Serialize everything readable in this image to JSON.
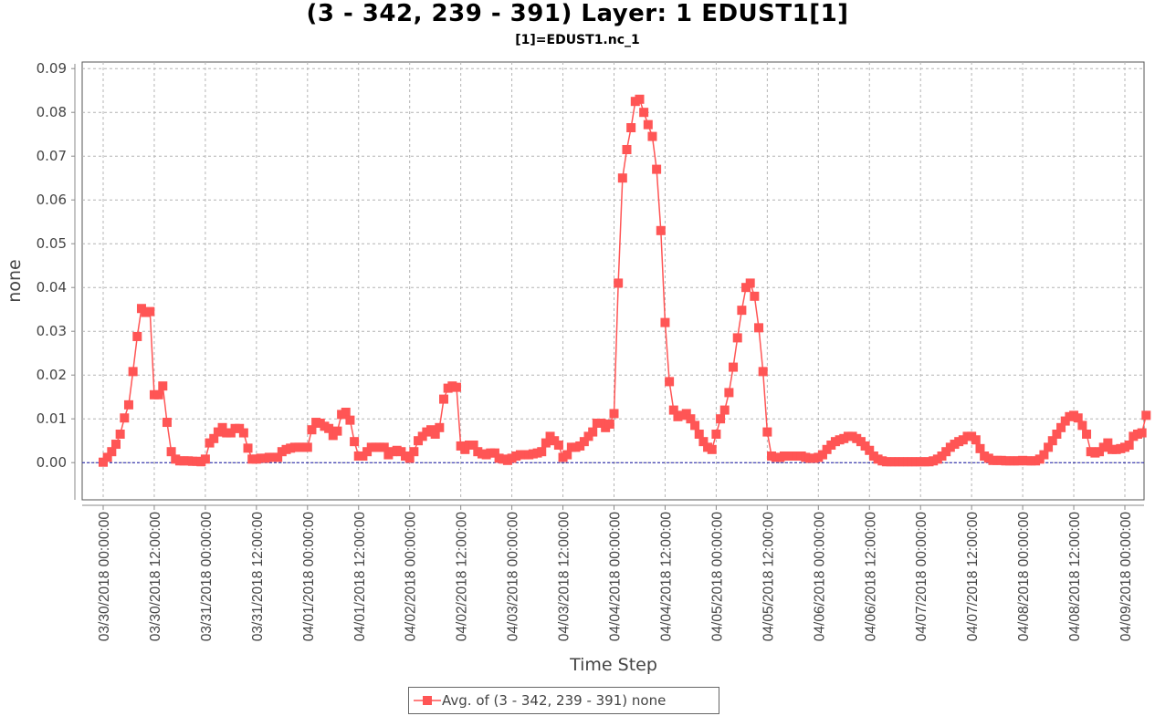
{
  "title": "(3 - 342, 239 - 391) Layer: 1 EDUST1[1]",
  "subtitle": "[1]=EDUST1.nc_1",
  "chart_data": {
    "type": "line",
    "title": "(3 - 342, 239 - 391) Layer: 1 EDUST1[1]",
    "subtitle": "[1]=EDUST1.nc_1",
    "xlabel": "Time Step",
    "ylabel": "none",
    "ylim": [
      -0.0085,
      0.0915
    ],
    "yticks": [
      "0.00",
      "0.01",
      "0.02",
      "0.03",
      "0.04",
      "0.05",
      "0.06",
      "0.07",
      "0.08",
      "0.09"
    ],
    "xlim": [
      "03/30/2018 00:00:00",
      "04/09/2018 00:00:00"
    ],
    "xticks": [
      "03/30/2018 00:00:00",
      "03/30/2018 12:00:00",
      "03/31/2018 00:00:00",
      "03/31/2018 12:00:00",
      "04/01/2018 00:00:00",
      "04/01/2018 12:00:00",
      "04/02/2018 00:00:00",
      "04/02/2018 12:00:00",
      "04/03/2018 00:00:00",
      "04/03/2018 12:00:00",
      "04/04/2018 00:00:00",
      "04/04/2018 12:00:00",
      "04/05/2018 00:00:00",
      "04/05/2018 12:00:00",
      "04/06/2018 00:00:00",
      "04/06/2018 12:00:00",
      "04/07/2018 00:00:00",
      "04/07/2018 12:00:00",
      "04/08/2018 00:00:00",
      "04/08/2018 12:00:00",
      "04/09/2018 00:00:00"
    ],
    "x_start": "03/30/2018 00:00:00",
    "x_step_hours": 1,
    "grid": true,
    "zero_line": true,
    "legend_position": "bottom-center",
    "series": [
      {
        "name": "Avg. of (3 - 342, 239 - 391)  none",
        "color": "#ff5555",
        "marker": "square",
        "values": [
          0.0001,
          0.0012,
          0.0025,
          0.0042,
          0.0065,
          0.0102,
          0.0132,
          0.0208,
          0.0288,
          0.0352,
          0.0343,
          0.0345,
          0.0155,
          0.0155,
          0.0175,
          0.0092,
          0.0025,
          0.0008,
          0.0004,
          0.0004,
          0.0004,
          0.0003,
          0.0003,
          0.0002,
          0.0008,
          0.0045,
          0.0055,
          0.007,
          0.008,
          0.0068,
          0.0068,
          0.0078,
          0.0078,
          0.0068,
          0.0033,
          0.0008,
          0.0008,
          0.001,
          0.001,
          0.0012,
          0.0012,
          0.0012,
          0.0025,
          0.003,
          0.0033,
          0.0035,
          0.0035,
          0.0035,
          0.0035,
          0.0075,
          0.0092,
          0.009,
          0.0083,
          0.0078,
          0.0062,
          0.0072,
          0.011,
          0.0115,
          0.0097,
          0.0048,
          0.0015,
          0.0015,
          0.0025,
          0.0035,
          0.0035,
          0.0035,
          0.0035,
          0.0018,
          0.0025,
          0.0028,
          0.0025,
          0.0015,
          0.001,
          0.0025,
          0.005,
          0.006,
          0.007,
          0.0075,
          0.0065,
          0.008,
          0.0145,
          0.017,
          0.0175,
          0.0172,
          0.0038,
          0.003,
          0.004,
          0.004,
          0.0025,
          0.002,
          0.0018,
          0.0022,
          0.0022,
          0.001,
          0.0008,
          0.0005,
          0.001,
          0.0015,
          0.0018,
          0.0018,
          0.0018,
          0.002,
          0.0022,
          0.0025,
          0.0045,
          0.006,
          0.005,
          0.004,
          0.0012,
          0.0018,
          0.0035,
          0.0035,
          0.0038,
          0.0048,
          0.006,
          0.007,
          0.009,
          0.009,
          0.008,
          0.0088,
          0.0112,
          0.041,
          0.065,
          0.0715,
          0.0765,
          0.0825,
          0.083,
          0.08,
          0.0772,
          0.0745,
          0.067,
          0.053,
          0.032,
          0.0185,
          0.012,
          0.0105,
          0.0108,
          0.0112,
          0.01,
          0.0085,
          0.0065,
          0.0048,
          0.0035,
          0.003,
          0.0065,
          0.01,
          0.012,
          0.016,
          0.0218,
          0.0285,
          0.0348,
          0.04,
          0.041,
          0.038,
          0.0308,
          0.0208,
          0.007,
          0.0015,
          0.0012,
          0.0012,
          0.0015,
          0.0015,
          0.0015,
          0.0015,
          0.0015,
          0.0012,
          0.001,
          0.001,
          0.0012,
          0.0018,
          0.003,
          0.004,
          0.0048,
          0.0052,
          0.0055,
          0.006,
          0.006,
          0.0055,
          0.0048,
          0.0038,
          0.0028,
          0.0015,
          0.0008,
          0.0004,
          0.0002,
          0.0002,
          0.0002,
          0.0002,
          0.0002,
          0.0002,
          0.0002,
          0.0002,
          0.0002,
          0.0002,
          0.0002,
          0.0004,
          0.0008,
          0.0015,
          0.0025,
          0.0035,
          0.0042,
          0.0048,
          0.0052,
          0.006,
          0.006,
          0.0052,
          0.0032,
          0.0015,
          0.001,
          0.0005,
          0.0005,
          0.0005,
          0.0004,
          0.0004,
          0.0004,
          0.0004,
          0.0005,
          0.0004,
          0.0004,
          0.0004,
          0.0008,
          0.0018,
          0.0035,
          0.005,
          0.0065,
          0.008,
          0.0095,
          0.0105,
          0.0108,
          0.0102,
          0.0085,
          0.0065,
          0.0025,
          0.0022,
          0.0025,
          0.0035,
          0.0045,
          0.003,
          0.003,
          0.0032,
          0.0035,
          0.004,
          0.006,
          0.0065,
          0.0068,
          0.0108
        ]
      }
    ]
  }
}
